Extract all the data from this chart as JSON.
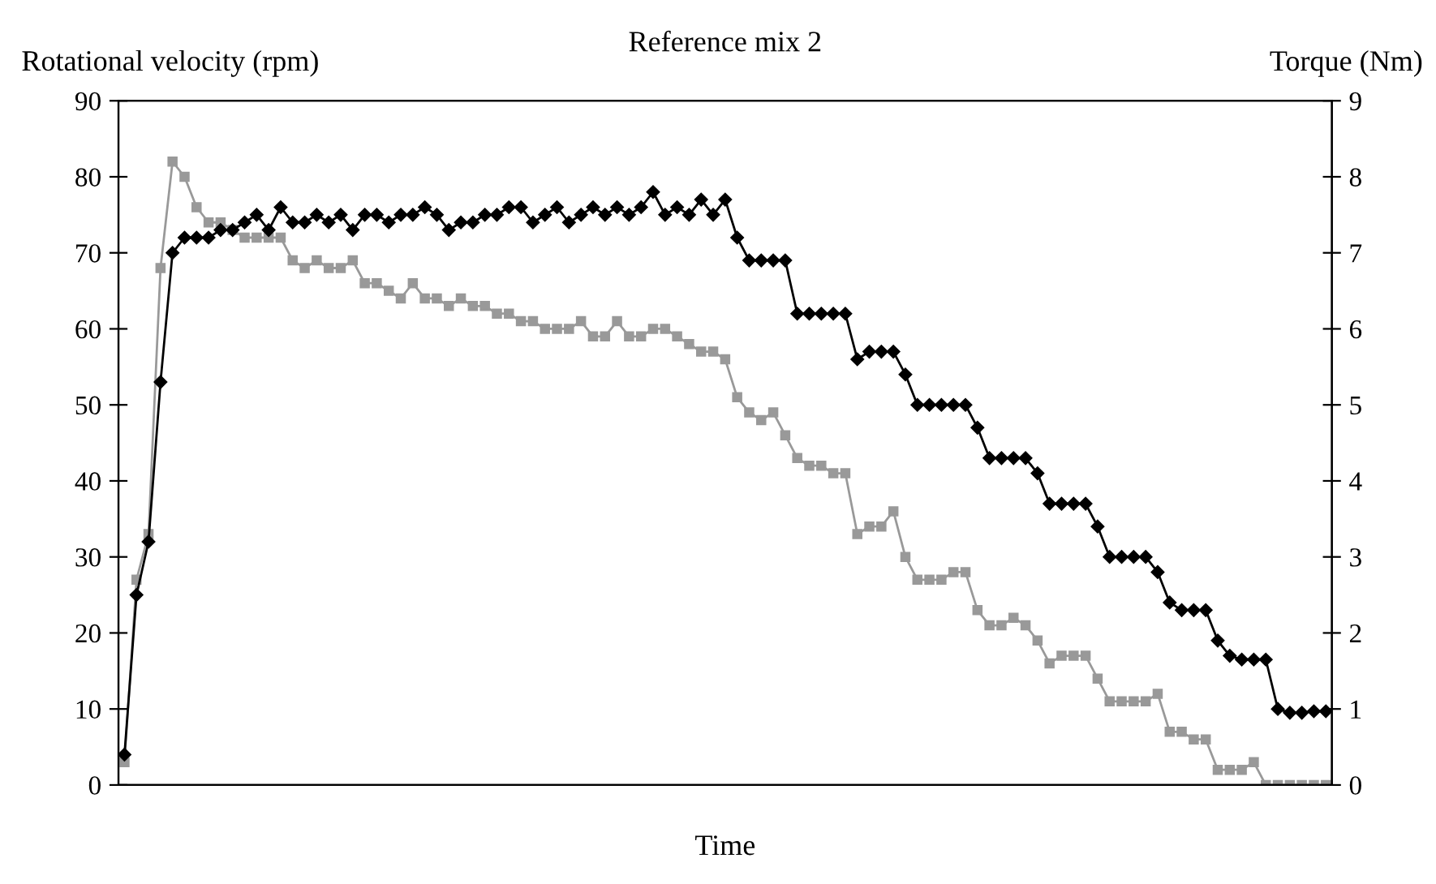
{
  "chart_data": {
    "type": "line",
    "title": "Reference mix 2",
    "xlabel": "Time",
    "ylabel": "Rotational velocity (rpm)",
    "y2label": "Torque (Nm)",
    "categories": [
      null,
      null,
      null,
      null,
      null,
      null,
      null,
      null,
      null,
      null,
      null,
      null,
      null,
      null,
      null,
      null,
      null,
      null,
      null,
      null,
      null,
      null,
      null,
      null,
      null,
      null,
      null,
      null,
      null,
      null,
      null,
      null,
      null,
      null,
      null,
      null,
      null,
      null,
      null,
      null,
      null,
      null,
      null,
      null,
      null,
      null,
      null,
      null,
      null,
      null,
      null,
      null,
      null,
      null,
      null,
      null,
      null,
      null,
      null,
      null,
      null,
      null,
      null,
      null,
      null,
      null,
      null,
      null,
      null,
      null,
      null,
      null,
      null,
      null,
      null,
      null,
      null,
      null,
      null,
      null,
      null,
      null,
      null,
      null,
      null,
      null,
      null,
      null,
      null,
      null,
      null,
      null,
      null,
      null,
      null,
      null,
      null,
      null,
      null,
      null,
      null
    ],
    "series": [
      {
        "color": "#000000",
        "marker": "diamond",
        "values": [
          4,
          25,
          32,
          53,
          70,
          72,
          72,
          72,
          73,
          73,
          74,
          75,
          73,
          76,
          74,
          74,
          75,
          74,
          75,
          73,
          75,
          75,
          74,
          75,
          75,
          76,
          75,
          73,
          74,
          74,
          75,
          75,
          76,
          76,
          74,
          75,
          76,
          74,
          75,
          76,
          75,
          76,
          75,
          76,
          78,
          75,
          76,
          75,
          77,
          75,
          77,
          72,
          69,
          69,
          69,
          69,
          62,
          62,
          62,
          62,
          62,
          56,
          57,
          57,
          57,
          54,
          50,
          50,
          50,
          50,
          50,
          47,
          43,
          43,
          43,
          43,
          41,
          37,
          37,
          37,
          37,
          34,
          30,
          30,
          30,
          30,
          28,
          24,
          23,
          23,
          23,
          19,
          17,
          16.5,
          16.5,
          16.5,
          10,
          9.5,
          9.5,
          9.7,
          9.7
        ]
      },
      {
        "color": "#999999",
        "marker": "square",
        "axis": "y2",
        "values": [
          0.3,
          2.7,
          3.3,
          6.8,
          8.2,
          8.0,
          7.6,
          7.4,
          7.4,
          7.3,
          7.2,
          7.2,
          7.2,
          7.2,
          6.9,
          6.8,
          6.9,
          6.8,
          6.8,
          6.9,
          6.6,
          6.6,
          6.5,
          6.4,
          6.6,
          6.4,
          6.4,
          6.3,
          6.4,
          6.3,
          6.3,
          6.2,
          6.2,
          6.1,
          6.1,
          6.0,
          6.0,
          6.0,
          6.1,
          5.9,
          5.9,
          6.1,
          5.9,
          5.9,
          6.0,
          6.0,
          5.9,
          5.8,
          5.7,
          5.7,
          5.6,
          5.1,
          4.9,
          4.8,
          4.9,
          4.6,
          4.3,
          4.2,
          4.2,
          4.1,
          4.1,
          3.3,
          3.4,
          3.4,
          3.6,
          3.0,
          2.7,
          2.7,
          2.7,
          2.8,
          2.8,
          2.3,
          2.1,
          2.1,
          2.2,
          2.1,
          1.9,
          1.6,
          1.7,
          1.7,
          1.7,
          1.4,
          1.1,
          1.1,
          1.1,
          1.1,
          1.2,
          0.7,
          0.7,
          0.6,
          0.6,
          0.2,
          0.2,
          0.2,
          0.3,
          0,
          0,
          0,
          0,
          0,
          0
        ]
      }
    ],
    "ylim": [
      0,
      90
    ],
    "yticks": [
      0,
      10,
      20,
      30,
      40,
      50,
      60,
      70,
      80,
      90
    ],
    "y2lim": [
      0,
      9
    ],
    "y2ticks": [
      0,
      1,
      2,
      3,
      4,
      5,
      6,
      7,
      8,
      9
    ],
    "grid": false,
    "legend": false,
    "line_style": "solid"
  }
}
